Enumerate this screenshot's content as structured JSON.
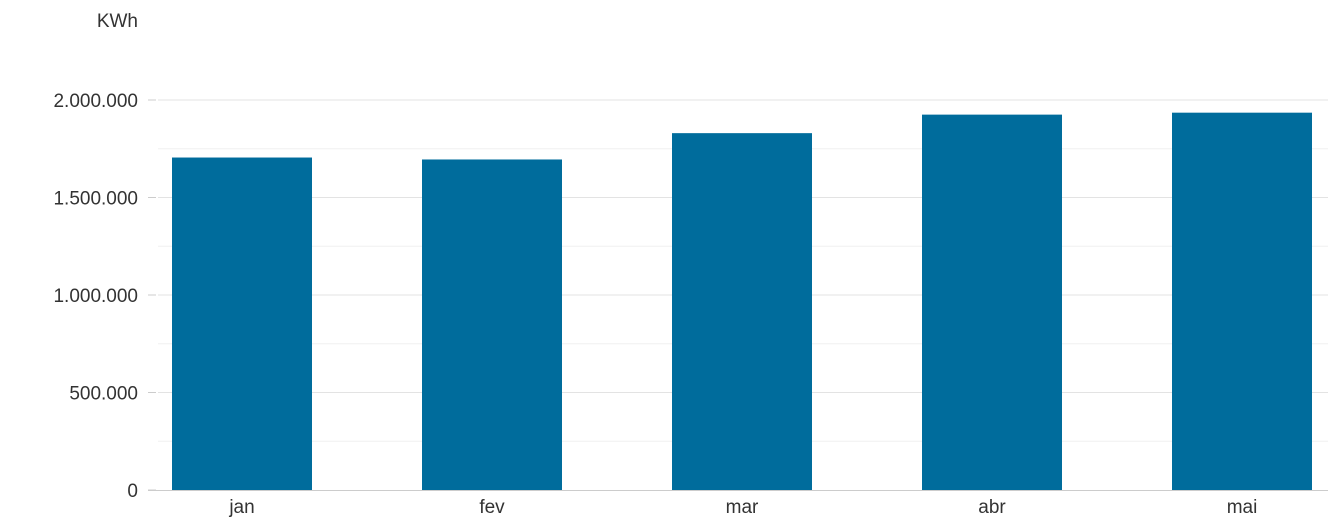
{
  "chart_data": {
    "type": "bar",
    "ylabel": "KWh",
    "categories": [
      "jan",
      "fev",
      "mar",
      "abr",
      "mai"
    ],
    "values": [
      1705000,
      1695000,
      1830000,
      1925000,
      1935000
    ],
    "yticks": [
      0,
      500000,
      1000000,
      1500000,
      2000000
    ],
    "ytick_labels": [
      "0",
      "500.000",
      "1.000.000",
      "1.500.000",
      "2.000.000"
    ],
    "ylim": [
      0,
      2000000
    ],
    "grid": true,
    "bar_color": "#006c9c",
    "grid_color": "#e3e3e3",
    "axis_color": "#cccccc"
  }
}
